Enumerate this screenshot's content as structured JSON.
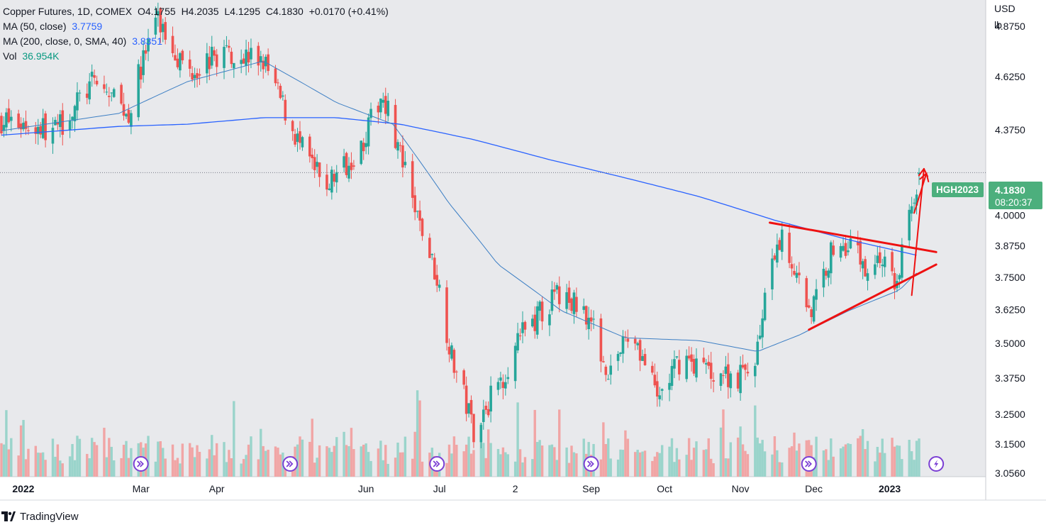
{
  "legend": {
    "symbol": "Copper Futures, 1D, COMEX",
    "open": "O4.1755",
    "high": "H4.2035",
    "low": "L4.1295",
    "close": "C4.1830",
    "change": "+0.0170 (+0.41%)",
    "ma50_label": "MA (50, close)",
    "ma50_value": "3.7759",
    "ma200_label": "MA (200, close, 0, SMA, 40)",
    "ma200_value": "3.8351",
    "vol_label": "Vol",
    "vol_value": "36.954K"
  },
  "axis": {
    "currency": "USD",
    "unit": "lb"
  },
  "price_badge": {
    "ticker": "HGH2023",
    "price": "4.1830",
    "countdown": "08:20:37"
  },
  "brand": {
    "name": "TradingView"
  },
  "colors": {
    "up": "#26a69a",
    "down": "#ef5350",
    "ma50": "#2962ff",
    "ma200": "#2962ff",
    "trendline": "#ee1111",
    "badge": "#4caf7d",
    "plot_bg": "#e8e9ec"
  },
  "chart_data": {
    "type": "candlestick",
    "y_axis_ticks": [
      "4.8750",
      "4.6250",
      "4.3750",
      "4.0000",
      "3.8750",
      "3.7500",
      "3.6250",
      "3.5000",
      "3.3750",
      "3.2500",
      "3.1500",
      "3.0560"
    ],
    "y_scale": "log",
    "y_range": [
      3.056,
      4.98
    ],
    "x_axis_labels": [
      "2022",
      "Mar",
      "Apr",
      "Jun",
      "Jul",
      "2",
      "Sep",
      "Oct",
      "Nov",
      "Dec",
      "2023"
    ],
    "x_range": [
      "2022-01-03",
      "2023-01-31"
    ],
    "last_close": 4.183,
    "ma50_last": 3.7759,
    "ma200_last": 3.8351,
    "volume_last": "36.954K",
    "key_points": [
      {
        "date": "2022-01-03",
        "price": 4.42
      },
      {
        "date": "2022-01-25",
        "price": 4.37
      },
      {
        "date": "2022-02-10",
        "price": 4.6
      },
      {
        "date": "2022-02-24",
        "price": 4.45
      },
      {
        "date": "2022-03-07",
        "price": 4.92
      },
      {
        "date": "2022-03-20",
        "price": 4.65
      },
      {
        "date": "2022-04-05",
        "price": 4.75
      },
      {
        "date": "2022-04-20",
        "price": 4.7
      },
      {
        "date": "2022-05-05",
        "price": 4.3
      },
      {
        "date": "2022-05-15",
        "price": 4.12
      },
      {
        "date": "2022-05-30",
        "price": 4.3
      },
      {
        "date": "2022-06-08",
        "price": 4.55
      },
      {
        "date": "2022-06-20",
        "price": 4.05
      },
      {
        "date": "2022-06-30",
        "price": 3.75
      },
      {
        "date": "2022-07-06",
        "price": 3.45
      },
      {
        "date": "2022-07-15",
        "price": 3.2
      },
      {
        "date": "2022-07-25",
        "price": 3.35
      },
      {
        "date": "2022-08-05",
        "price": 3.55
      },
      {
        "date": "2022-08-18",
        "price": 3.68
      },
      {
        "date": "2022-08-30",
        "price": 3.62
      },
      {
        "date": "2022-09-08",
        "price": 3.4
      },
      {
        "date": "2022-09-18",
        "price": 3.55
      },
      {
        "date": "2022-09-28",
        "price": 3.3
      },
      {
        "date": "2022-10-08",
        "price": 3.45
      },
      {
        "date": "2022-10-20",
        "price": 3.4
      },
      {
        "date": "2022-10-30",
        "price": 3.38
      },
      {
        "date": "2022-11-06",
        "price": 3.4
      },
      {
        "date": "2022-11-12",
        "price": 3.7
      },
      {
        "date": "2022-11-18",
        "price": 3.92
      },
      {
        "date": "2022-11-25",
        "price": 3.73
      },
      {
        "date": "2022-11-30",
        "price": 3.62
      },
      {
        "date": "2022-12-08",
        "price": 3.85
      },
      {
        "date": "2022-12-16",
        "price": 3.9
      },
      {
        "date": "2022-12-22",
        "price": 3.78
      },
      {
        "date": "2022-12-28",
        "price": 3.83
      },
      {
        "date": "2023-01-04",
        "price": 3.72
      },
      {
        "date": "2023-01-06",
        "price": 3.85
      },
      {
        "date": "2023-01-10",
        "price": 4.05
      },
      {
        "date": "2023-01-13",
        "price": 4.18
      }
    ],
    "ma200_points": [
      {
        "date": "2022-01-03",
        "price": 4.35
      },
      {
        "date": "2022-02-20",
        "price": 4.39
      },
      {
        "date": "2022-03-20",
        "price": 4.4
      },
      {
        "date": "2022-04-20",
        "price": 4.43
      },
      {
        "date": "2022-05-20",
        "price": 4.43
      },
      {
        "date": "2022-06-15",
        "price": 4.4
      },
      {
        "date": "2022-07-15",
        "price": 4.33
      },
      {
        "date": "2022-08-15",
        "price": 4.24
      },
      {
        "date": "2022-09-15",
        "price": 4.16
      },
      {
        "date": "2022-10-15",
        "price": 4.08
      },
      {
        "date": "2022-11-15",
        "price": 3.98
      },
      {
        "date": "2022-12-15",
        "price": 3.9
      },
      {
        "date": "2023-01-13",
        "price": 3.835
      }
    ],
    "ma50_points": [
      {
        "date": "2022-01-03",
        "price": 4.37
      },
      {
        "date": "2022-02-20",
        "price": 4.45
      },
      {
        "date": "2022-03-20",
        "price": 4.6
      },
      {
        "date": "2022-04-20",
        "price": 4.7
      },
      {
        "date": "2022-05-20",
        "price": 4.5
      },
      {
        "date": "2022-06-12",
        "price": 4.4
      },
      {
        "date": "2022-07-05",
        "price": 4.05
      },
      {
        "date": "2022-07-25",
        "price": 3.8
      },
      {
        "date": "2022-08-20",
        "price": 3.62
      },
      {
        "date": "2022-09-15",
        "price": 3.52
      },
      {
        "date": "2022-10-15",
        "price": 3.51
      },
      {
        "date": "2022-11-08",
        "price": 3.47
      },
      {
        "date": "2022-11-25",
        "price": 3.53
      },
      {
        "date": "2022-12-15",
        "price": 3.62
      },
      {
        "date": "2023-01-05",
        "price": 3.7
      },
      {
        "date": "2023-01-13",
        "price": 3.776
      }
    ],
    "annotations": [
      {
        "type": "trendline",
        "from": {
          "date": "2022-11-13",
          "price": 3.97
        },
        "to": {
          "date": "2023-01-20",
          "price": 3.85
        }
      },
      {
        "type": "trendline",
        "from": {
          "date": "2022-11-29",
          "price": 3.55
        },
        "to": {
          "date": "2023-01-20",
          "price": 3.8
        }
      },
      {
        "type": "arrow",
        "from": {
          "date": "2023-01-10",
          "price": 3.68
        },
        "to": {
          "date": "2023-01-15",
          "price": 4.2
        }
      },
      {
        "type": "arrow",
        "from": {
          "date": "2023-01-11",
          "price": 4.01
        },
        "to": {
          "date": "2023-01-16",
          "price": 4.18
        }
      }
    ],
    "event_markers": [
      "2022-03-01",
      "2022-05-01",
      "2022-06-30",
      "2022-09-01",
      "2022-11-29",
      "2023-01-20"
    ]
  }
}
